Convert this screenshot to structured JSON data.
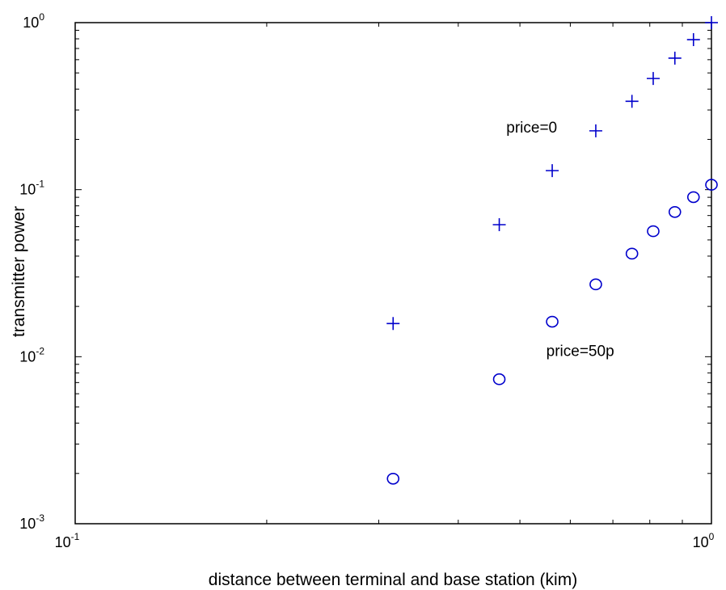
{
  "chart_data": {
    "type": "scatter",
    "title": "",
    "xlabel": "distance between terminal and base station (kim)",
    "ylabel": "transmitter power",
    "xscale": "log",
    "yscale": "log",
    "xlim": [
      0.1,
      1
    ],
    "ylim": [
      0.001,
      1
    ],
    "grid": false,
    "x_ticks": [
      {
        "base": "10",
        "exp": "-1"
      },
      {
        "base": "10",
        "exp": "0"
      }
    ],
    "y_ticks": [
      {
        "base": "10",
        "exp": "-3"
      },
      {
        "base": "10",
        "exp": "-2"
      },
      {
        "base": "10",
        "exp": "-1"
      },
      {
        "base": "10",
        "exp": "0"
      }
    ],
    "series": [
      {
        "marker": "plus",
        "color": "#0000cc",
        "x": [
          0.316,
          0.464,
          0.562,
          0.658,
          0.75,
          0.81,
          0.876,
          0.937,
          1.0
        ],
        "y": [
          0.0158,
          0.0617,
          0.13,
          0.225,
          0.338,
          0.463,
          0.613,
          0.791,
          1.0
        ]
      },
      {
        "marker": "circle",
        "color": "#0000cc",
        "x": [
          0.316,
          0.464,
          0.562,
          0.658,
          0.75,
          0.81,
          0.876,
          0.937,
          1.0
        ],
        "y": [
          0.00186,
          0.00733,
          0.0162,
          0.0271,
          0.0414,
          0.0564,
          0.0735,
          0.0902,
          0.107
        ]
      }
    ],
    "annotations": [
      {
        "text": "price=0",
        "x": 0.476,
        "y": 0.22
      },
      {
        "text": "price=50p",
        "x": 0.55,
        "y": 0.0101
      }
    ]
  }
}
